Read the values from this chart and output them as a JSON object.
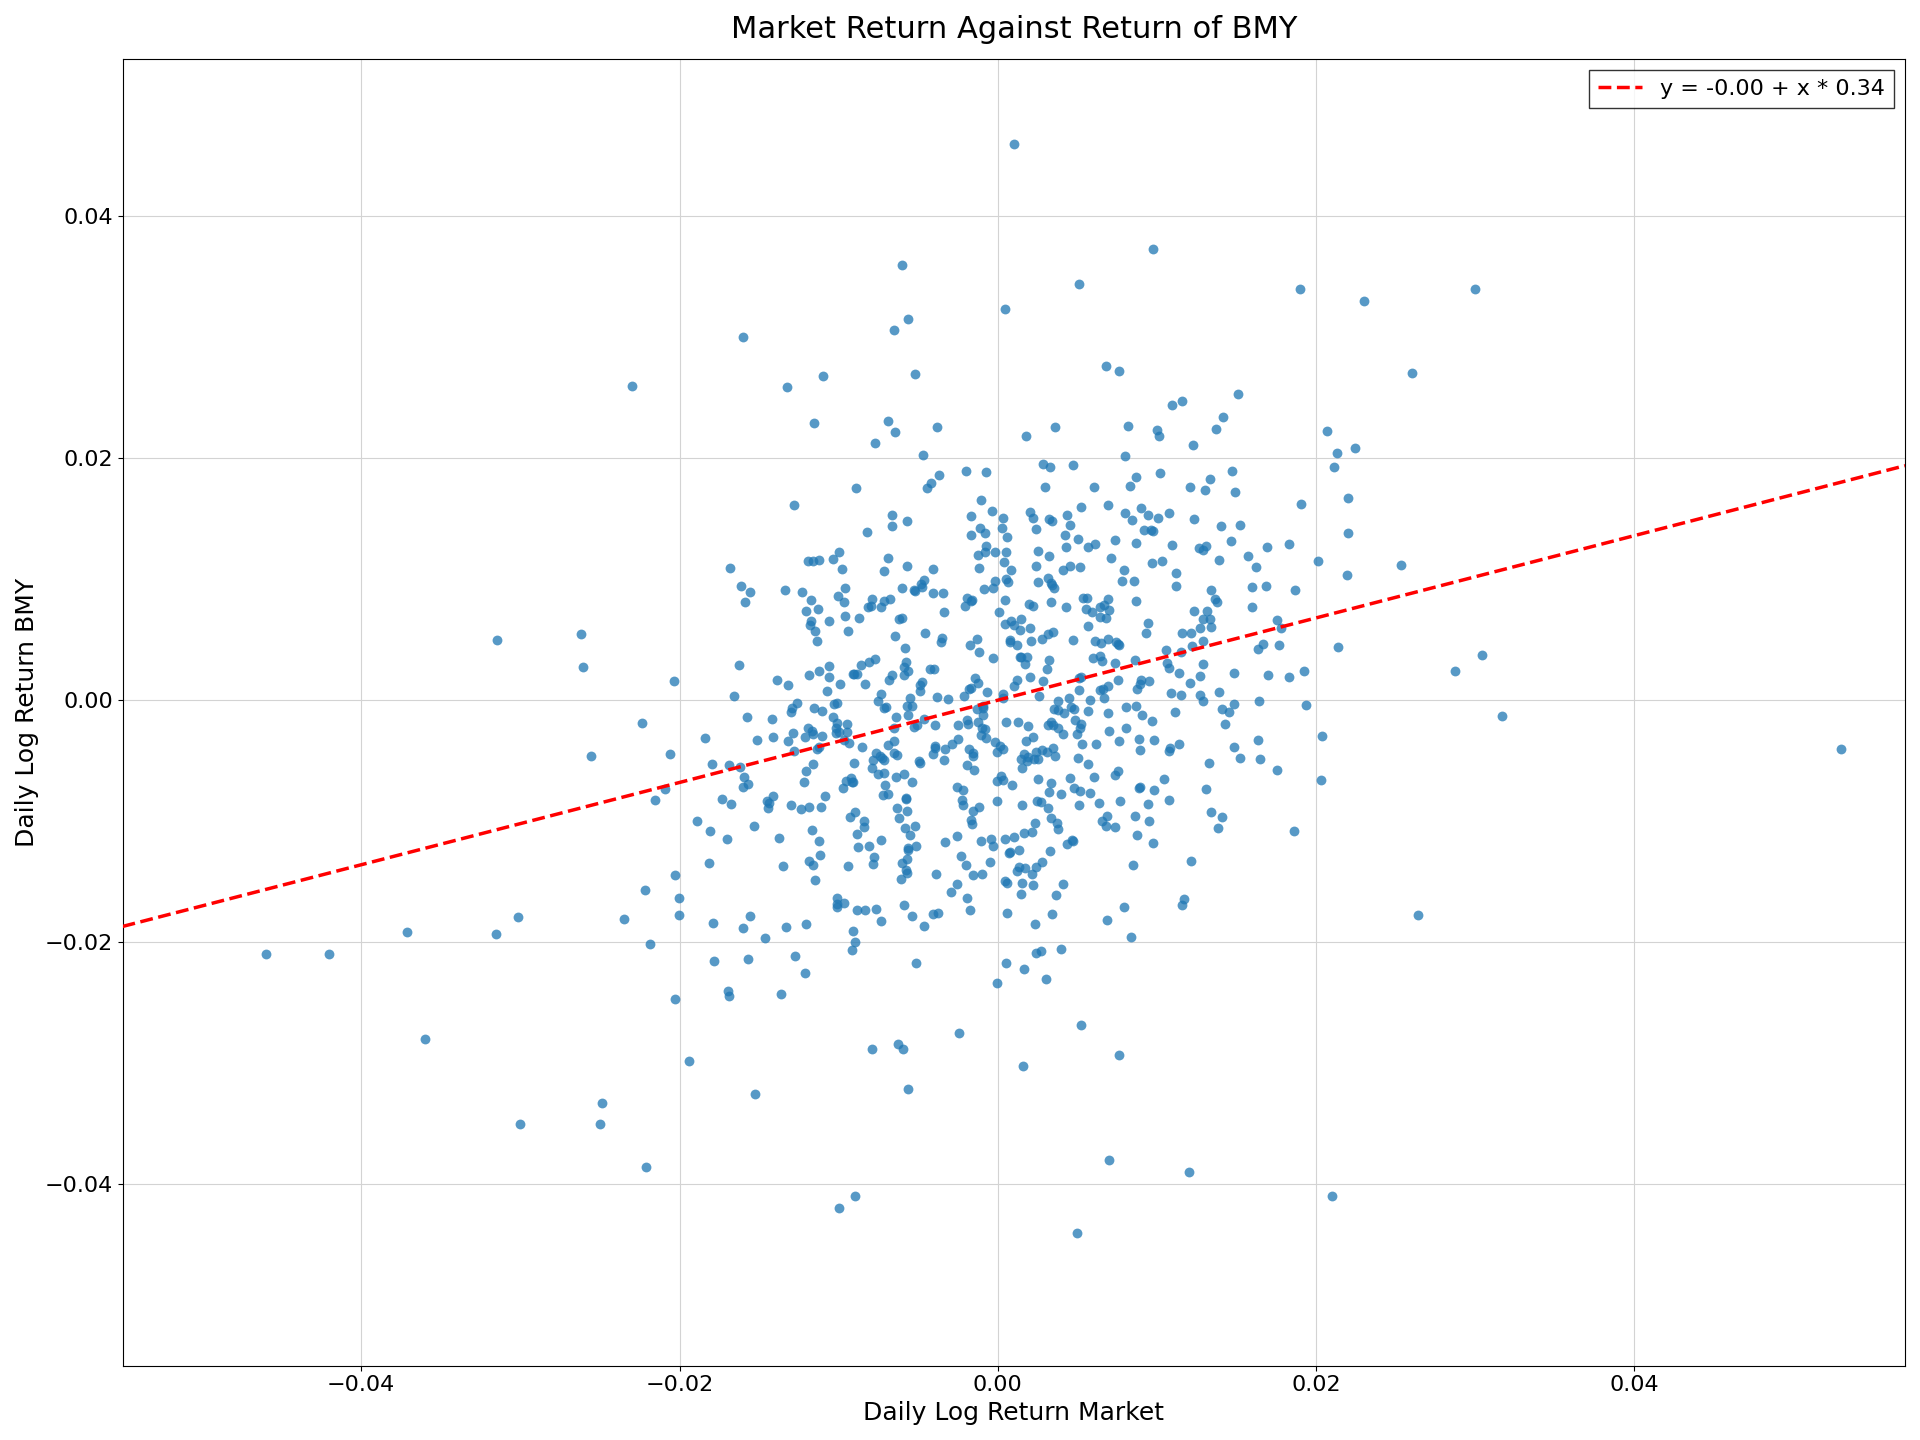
{
  "title": "Market Return Against Return of BMY",
  "xlabel": "Daily Log Return Market",
  "ylabel": "Daily Log Return BMY",
  "legend_label": "y = -0.00 + x * 0.34",
  "intercept": 0.0,
  "slope": 0.34,
  "xlim": [
    -0.055,
    0.057
  ],
  "ylim": [
    -0.055,
    0.053
  ],
  "scatter_color": "#1f77b4",
  "line_color": "red",
  "marker_size": 50,
  "alpha": 0.75,
  "seed": 12,
  "n_points": 750,
  "market_std": 0.01,
  "bmy_noise_std": 0.011,
  "title_fontsize": 22,
  "label_fontsize": 18,
  "tick_fontsize": 16,
  "legend_fontsize": 16
}
